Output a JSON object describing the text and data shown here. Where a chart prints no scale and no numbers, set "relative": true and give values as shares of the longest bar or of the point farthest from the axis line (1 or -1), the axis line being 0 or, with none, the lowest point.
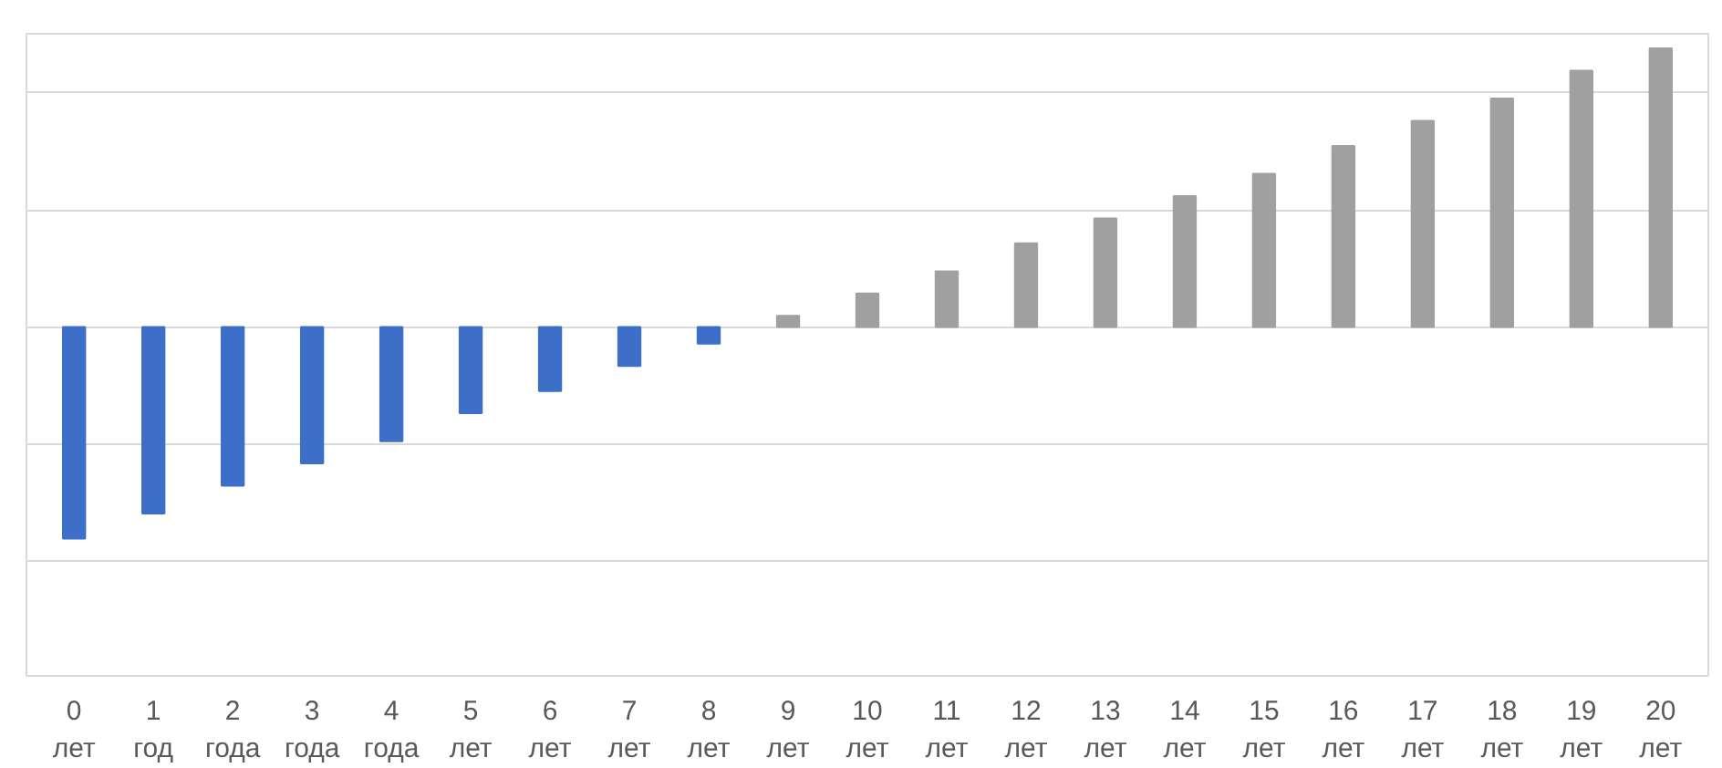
{
  "chart_data": {
    "type": "bar",
    "relative": true,
    "grid": "y",
    "categories": [
      "0 лет",
      "1 год",
      "2 года",
      "3 года",
      "4 года",
      "5 лет",
      "6 лет",
      "7 лет",
      "8 лет",
      "9 лет",
      "10 лет",
      "11 лет",
      "12 лет",
      "13 лет",
      "14 лет",
      "15 лет",
      "16 лет",
      "17 лет",
      "18 лет",
      "19 лет",
      "20 лет"
    ],
    "values": [
      -0.76,
      -0.67,
      -0.57,
      -0.49,
      -0.41,
      -0.31,
      -0.23,
      -0.14,
      -0.06,
      0.04,
      0.12,
      0.2,
      0.3,
      0.39,
      0.47,
      0.55,
      0.65,
      0.74,
      0.82,
      0.92,
      1
    ],
    "colors": [
      "#3d6fc8",
      "#3d6fc8",
      "#3d6fc8",
      "#3d6fc8",
      "#3d6fc8",
      "#3d6fc8",
      "#3d6fc8",
      "#3d6fc8",
      "#3d6fc8",
      "#a0a0a0",
      "#a0a0a0",
      "#a0a0a0",
      "#a0a0a0",
      "#a0a0a0",
      "#a0a0a0",
      "#a0a0a0",
      "#a0a0a0",
      "#a0a0a0",
      "#a0a0a0",
      "#a0a0a0",
      "#a0a0a0"
    ]
  }
}
